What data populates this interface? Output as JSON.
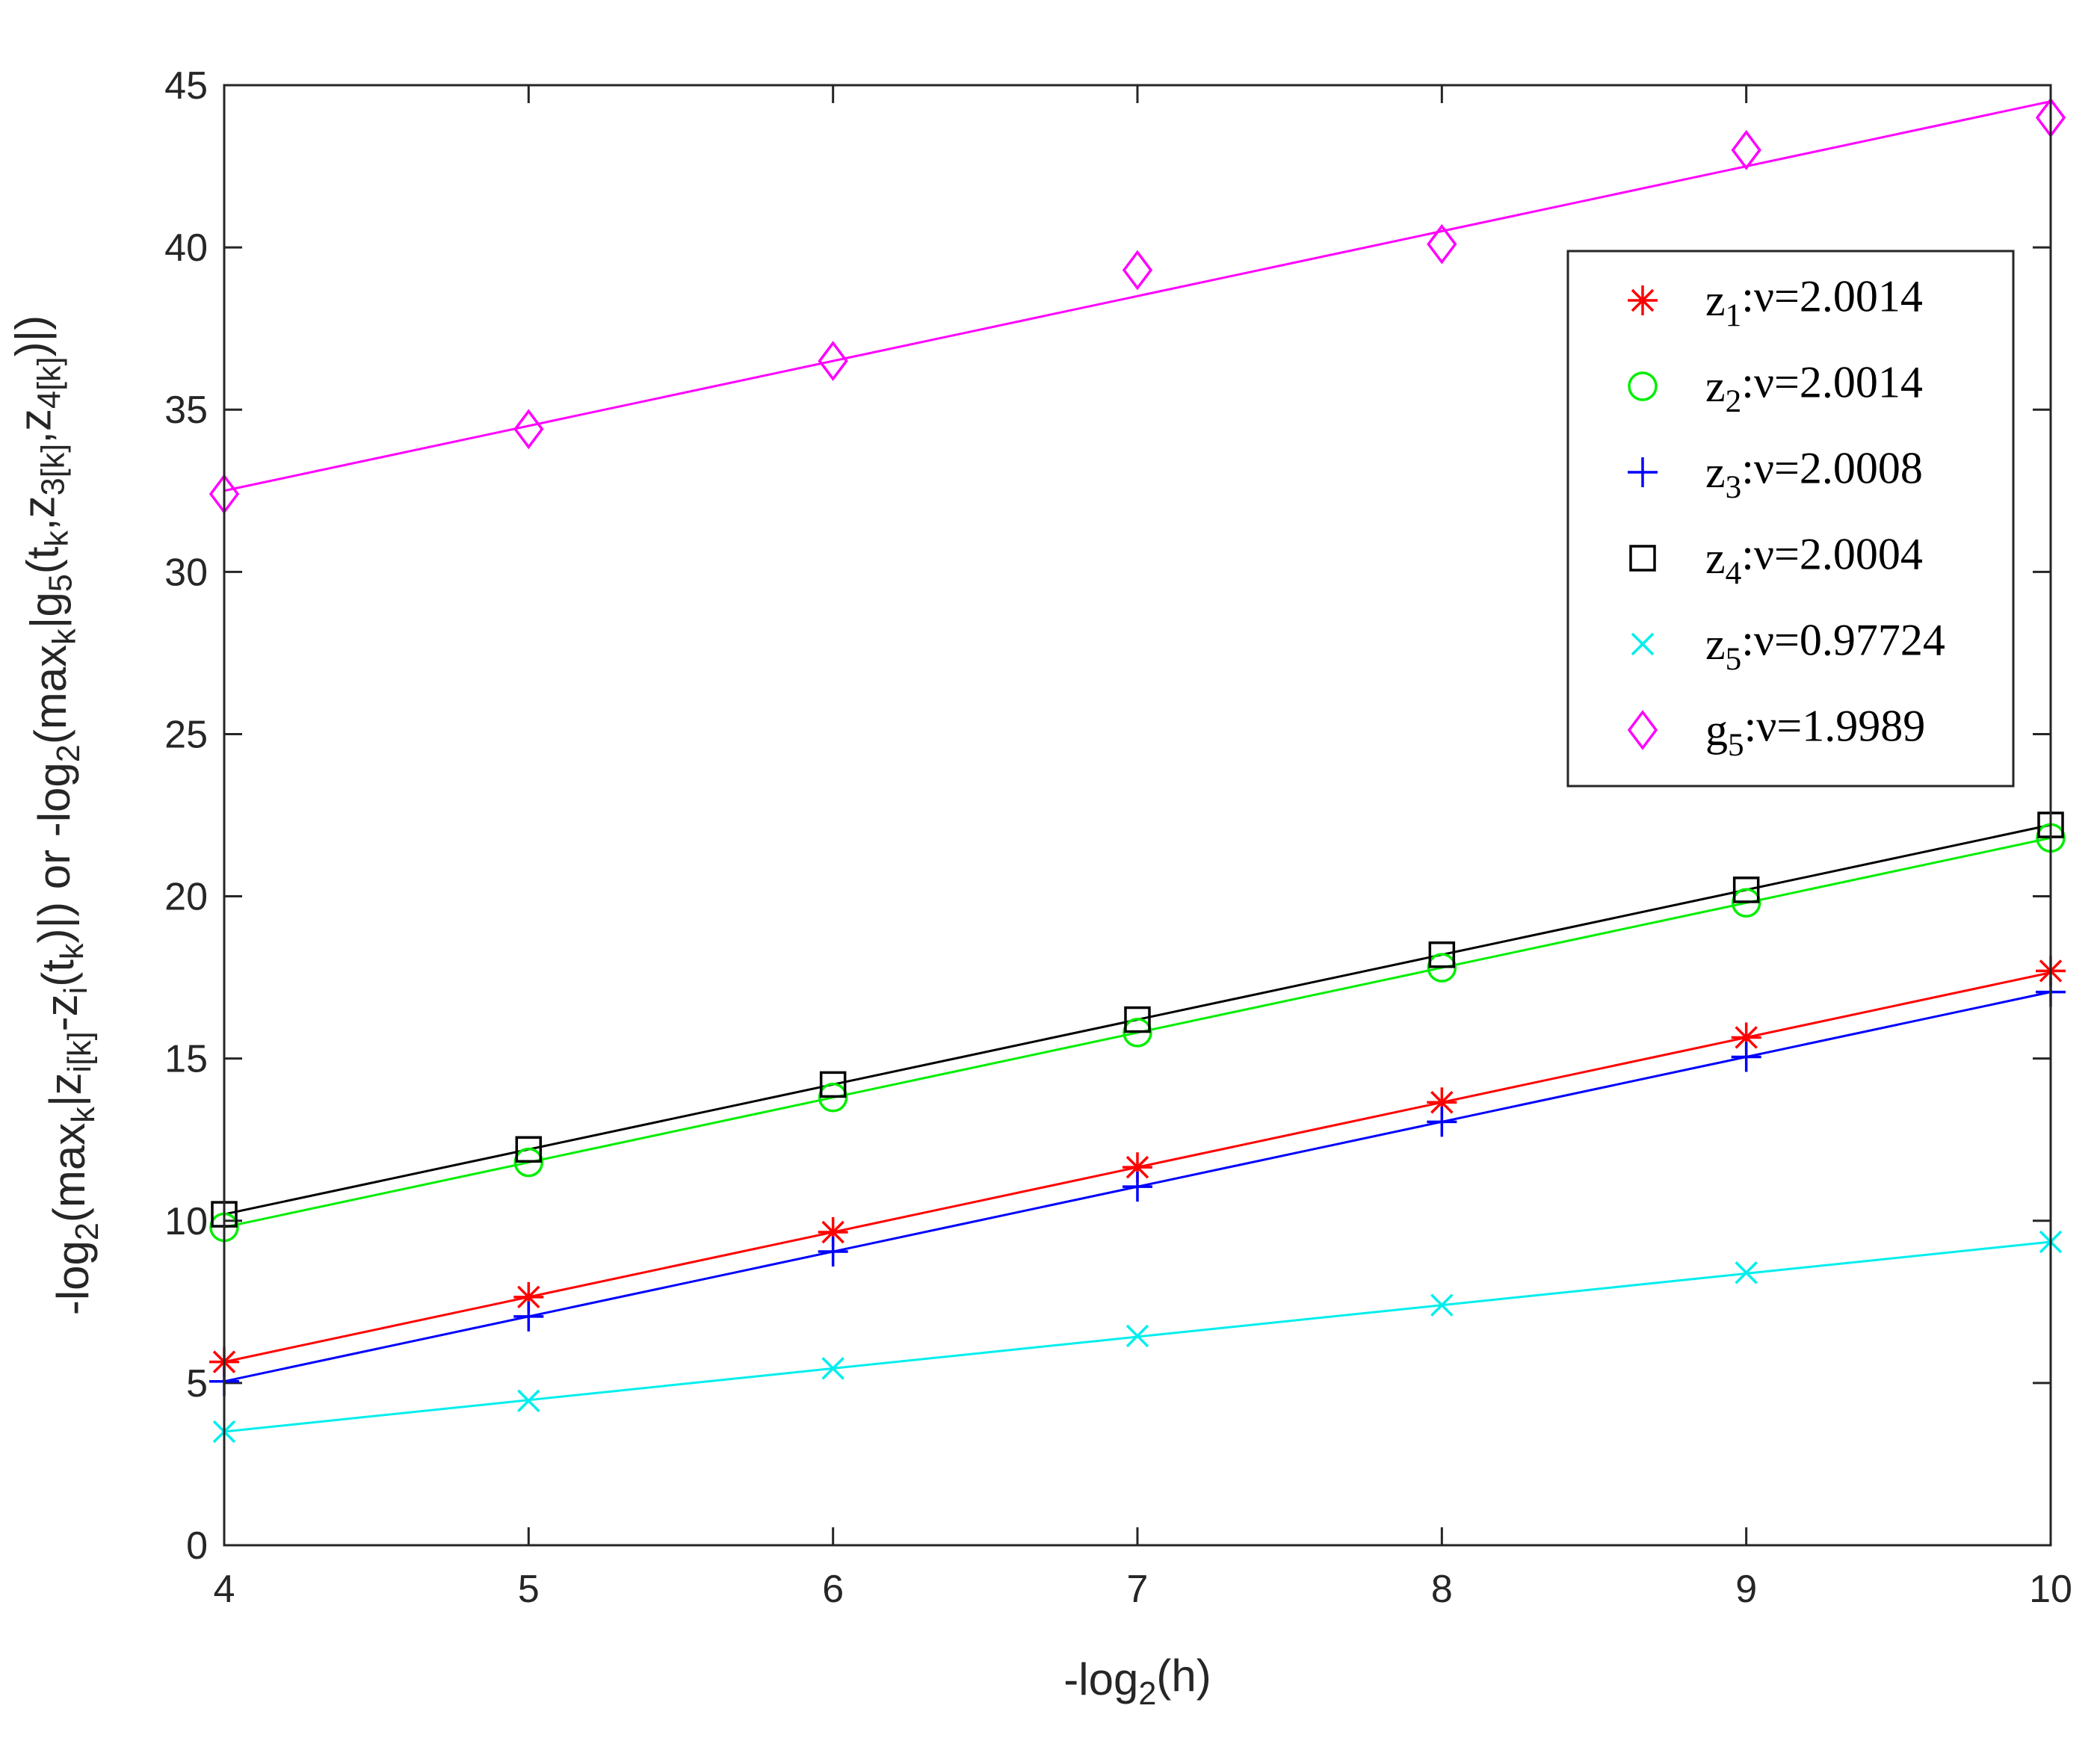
{
  "chart_data": {
    "type": "line",
    "xlabel": "-log2(h)",
    "ylabel": "-log2(maxk|zi[k]-zi(tk)|) or -log2(maxk|g5(tk,z3[k],z4[k])|)",
    "xlim": [
      4,
      10
    ],
    "ylim": [
      0,
      45
    ],
    "xticks": [
      4,
      5,
      6,
      7,
      8,
      9,
      10
    ],
    "yticks": [
      0,
      5,
      10,
      15,
      20,
      25,
      30,
      35,
      40,
      45
    ],
    "legend_position": "upper-right",
    "x": [
      4,
      5,
      6,
      7,
      8,
      9,
      10
    ],
    "series": [
      {
        "name": "z1:ν=2.0014",
        "color": "#ff0000",
        "marker": "asterisk",
        "values": [
          5.65,
          7.65,
          9.65,
          11.65,
          13.65,
          15.65,
          17.7
        ],
        "fit": [
          5.65,
          17.65
        ]
      },
      {
        "name": "z2:ν=2.0014",
        "color": "#00ee00",
        "marker": "circle",
        "values": [
          9.8,
          11.8,
          13.8,
          15.8,
          17.8,
          19.8,
          21.8
        ],
        "fit": [
          9.8,
          21.8
        ]
      },
      {
        "name": "z3:ν=2.0008",
        "color": "#0000ff",
        "marker": "plus",
        "values": [
          5.05,
          7.05,
          9.05,
          11.05,
          13.05,
          15.05,
          17.05
        ],
        "fit": [
          5.05,
          17.05
        ]
      },
      {
        "name": "z4:ν=2.0004",
        "color": "#000000",
        "marker": "square",
        "values": [
          10.2,
          12.2,
          14.2,
          16.2,
          18.2,
          20.2,
          22.2
        ],
        "fit": [
          10.2,
          22.2
        ]
      },
      {
        "name": "z5:ν=0.97724",
        "color": "#00eeee",
        "marker": "x",
        "values": [
          3.5,
          4.45,
          5.45,
          6.45,
          7.4,
          8.4,
          9.35
        ],
        "fit": [
          3.5,
          9.35
        ]
      },
      {
        "name": "g5:ν=1.9989",
        "color": "#ff00ff",
        "marker": "diamond",
        "values": [
          32.4,
          34.4,
          36.5,
          39.3,
          40.1,
          43.0,
          44.0
        ],
        "fit": [
          32.5,
          44.5
        ]
      }
    ]
  }
}
